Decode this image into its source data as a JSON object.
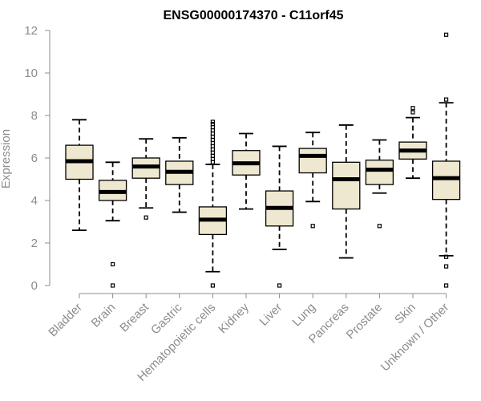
{
  "chart_data": {
    "type": "box",
    "title": "ENSG00000174370 - C11orf45",
    "xlabel": "",
    "ylabel": "Expression",
    "ylim": [
      0,
      12
    ],
    "yticks": [
      0,
      2,
      4,
      6,
      8,
      10,
      12
    ],
    "grid": false,
    "colors": {
      "box_fill": "#efe8d0",
      "box_stroke": "#000000",
      "axis": "#8c8c8c",
      "text_muted": "#8c8c8c"
    },
    "categories": [
      "Bladder",
      "Brain",
      "Breast",
      "Gastric",
      "Hematopoietic cells",
      "Kidney",
      "Liver",
      "Lung",
      "Pancreas",
      "Prostate",
      "Skin",
      "Unknown / Other"
    ],
    "boxes": [
      {
        "q1": 5.0,
        "median": 5.85,
        "q3": 6.6,
        "whisker_low": 2.6,
        "whisker_high": 7.8,
        "outliers": []
      },
      {
        "q1": 4.0,
        "median": 4.4,
        "q3": 4.95,
        "whisker_low": 3.05,
        "whisker_high": 5.8,
        "outliers": [
          1.0,
          0.0
        ]
      },
      {
        "q1": 5.05,
        "median": 5.6,
        "q3": 6.0,
        "whisker_low": 3.65,
        "whisker_high": 6.9,
        "outliers": [
          3.2
        ]
      },
      {
        "q1": 4.75,
        "median": 5.35,
        "q3": 5.85,
        "whisker_low": 3.45,
        "whisker_high": 6.95,
        "outliers": []
      },
      {
        "q1": 2.4,
        "median": 3.1,
        "q3": 3.7,
        "whisker_low": 0.65,
        "whisker_high": 5.7,
        "outliers": [
          0.0,
          5.8,
          5.95,
          6.1,
          6.25,
          6.4,
          6.55,
          6.7,
          6.85,
          7.0,
          7.15,
          7.3,
          7.45,
          7.6,
          7.7
        ]
      },
      {
        "q1": 5.2,
        "median": 5.75,
        "q3": 6.35,
        "whisker_low": 3.6,
        "whisker_high": 7.15,
        "outliers": []
      },
      {
        "q1": 2.8,
        "median": 3.65,
        "q3": 4.45,
        "whisker_low": 1.7,
        "whisker_high": 6.55,
        "outliers": [
          0.0
        ]
      },
      {
        "q1": 5.3,
        "median": 6.1,
        "q3": 6.45,
        "whisker_low": 3.95,
        "whisker_high": 7.2,
        "outliers": [
          2.8
        ]
      },
      {
        "q1": 3.6,
        "median": 5.0,
        "q3": 5.8,
        "whisker_low": 1.3,
        "whisker_high": 7.55,
        "outliers": []
      },
      {
        "q1": 4.75,
        "median": 5.45,
        "q3": 5.9,
        "whisker_low": 4.35,
        "whisker_high": 6.85,
        "outliers": [
          2.8
        ]
      },
      {
        "q1": 5.95,
        "median": 6.35,
        "q3": 6.75,
        "whisker_low": 5.05,
        "whisker_high": 7.9,
        "outliers": [
          8.15,
          8.35
        ]
      },
      {
        "q1": 4.05,
        "median": 5.05,
        "q3": 5.85,
        "whisker_low": 1.4,
        "whisker_high": 8.6,
        "outliers": [
          11.8,
          8.75,
          1.35,
          0.9,
          0.0
        ]
      }
    ]
  }
}
